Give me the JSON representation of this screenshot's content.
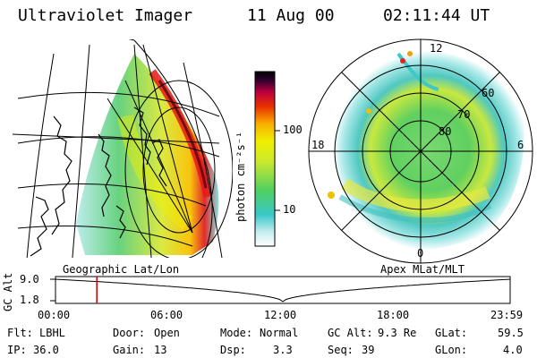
{
  "header": {
    "instrument": "Ultraviolet Imager",
    "date": "11 Aug 00",
    "time": "02:11:44 UT"
  },
  "colorbar": {
    "unit_label": "photon cm⁻²s⁻¹",
    "ticks": [
      "100",
      "10"
    ]
  },
  "left_panel": {
    "caption": "Geographic Lat/Lon"
  },
  "right_panel": {
    "caption": "Apex MLat/MLT",
    "mlt_labels": {
      "top": "12",
      "left": "18",
      "right": "6",
      "bottom": "0"
    },
    "lat_labels": [
      "60",
      "70",
      "80"
    ]
  },
  "timeline": {
    "ylabel": "GC Alt",
    "yticks": [
      "9.0",
      "1.8"
    ],
    "time_ticks": [
      "00:00",
      "06:00",
      "12:00",
      "18:00",
      "23:59"
    ],
    "current_marker_time": "02:11"
  },
  "params": {
    "flt_label": "Flt:",
    "flt_value": "LBHL",
    "ip_label": "IP:",
    "ip_value": "36.0",
    "door_label": "Door:",
    "door_value": "Open",
    "gain_label": "Gain:",
    "gain_value": "13",
    "mode_label": "Mode:",
    "mode_value": "Normal",
    "dsp_label": "Dsp:",
    "dsp_value": "3.3",
    "gcalt_label": "GC Alt:",
    "gcalt_value": "9.3 Re",
    "seq_label": "Seq:",
    "seq_value": "39",
    "glat_label": "GLat:",
    "glat_value": "59.5",
    "glon_label": "GLon:",
    "glon_value": "4.0"
  },
  "colors": {
    "marker": "#cc0000",
    "line": "#000000"
  }
}
